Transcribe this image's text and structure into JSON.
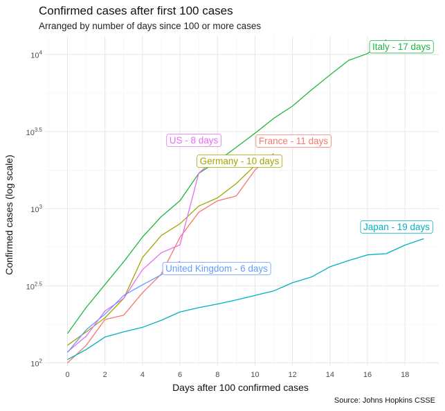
{
  "title": "Confirmed cases after first 100 cases",
  "subtitle": "Arranged by number of days since 100 or more cases",
  "caption": "Source: Johns Hopkins CSSE",
  "chart_data": {
    "type": "line",
    "xlabel": "Days after 100 confirmed cases",
    "ylabel": "Confirmed cases (log scale)",
    "y_scale": "log10",
    "xlim": [
      -1.2,
      19.8
    ],
    "ylim_log10": [
      1.98,
      4.12
    ],
    "x_ticks": [
      0,
      2,
      4,
      6,
      8,
      10,
      12,
      14,
      16,
      18
    ],
    "x_tick_labels": [
      "0",
      "2",
      "4",
      "6",
      "8",
      "10",
      "12",
      "14",
      "16",
      "18"
    ],
    "y_ticks_log10": [
      2,
      2.5,
      3,
      3.5,
      4
    ],
    "y_tick_labels": [
      {
        "base": "10",
        "exp": "2"
      },
      {
        "base": "10",
        "exp": "2.5"
      },
      {
        "base": "10",
        "exp": "3"
      },
      {
        "base": "10",
        "exp": "3.5"
      },
      {
        "base": "10",
        "exp": "4"
      }
    ],
    "grid": true,
    "legend": "none (direct labels)",
    "series": [
      {
        "name": "Italy",
        "color": "#1DB640",
        "x": [
          0,
          1,
          2,
          3,
          4,
          5,
          6,
          7,
          8,
          9,
          10,
          11,
          12,
          13,
          14,
          15,
          16,
          17
        ],
        "y": [
          155,
          229,
          322,
          453,
          655,
          888,
          1128,
          1694,
          2036,
          2502,
          3089,
          3858,
          4636,
          5883,
          7375,
          9172,
          10149,
          12462
        ],
        "label": "Italy - 17 days"
      },
      {
        "name": "Germany",
        "color": "#A3A500",
        "x": [
          0,
          1,
          2,
          3,
          4,
          5,
          6,
          7,
          8,
          9,
          10
        ],
        "y": [
          130,
          159,
          196,
          262,
          482,
          670,
          799,
          1040,
          1176,
          1457,
          1908
        ],
        "label": "Germany - 10 days"
      },
      {
        "name": "France",
        "color": "#F8766D",
        "x": [
          0,
          1,
          2,
          3,
          4,
          5,
          6,
          7,
          8,
          9,
          10,
          11
        ],
        "y": [
          100,
          130,
          191,
          204,
          285,
          377,
          653,
          949,
          1126,
          1209,
          1784,
          2281
        ],
        "label": "France - 11 days"
      },
      {
        "name": "US",
        "color": "#E76BF3",
        "x": [
          0,
          1,
          2,
          3,
          4,
          5,
          6,
          7,
          8
        ],
        "y": [
          118,
          149,
          217,
          262,
          402,
          518,
          583,
          1700,
          2179
        ],
        "label": "US - 8 days"
      },
      {
        "name": "United Kingdom",
        "color": "#619CFF",
        "x": [
          0,
          1,
          2,
          3,
          4,
          5,
          6
        ],
        "y": [
          117,
          164,
          207,
          274,
          321,
          373,
          456
        ],
        "label": "United Kingdom - 6 days"
      },
      {
        "name": "Japan",
        "color": "#00B0C0",
        "x": [
          0,
          1,
          2,
          3,
          4,
          5,
          6,
          7,
          8,
          9,
          10,
          11,
          12,
          13,
          14,
          15,
          16,
          17,
          18,
          19
        ],
        "y": [
          105,
          122,
          147,
          159,
          170,
          189,
          214,
          228,
          241,
          256,
          274,
          293,
          331,
          360,
          420,
          461,
          502,
          511,
          581,
          639
        ],
        "label": "Japan - 19 days"
      }
    ]
  }
}
